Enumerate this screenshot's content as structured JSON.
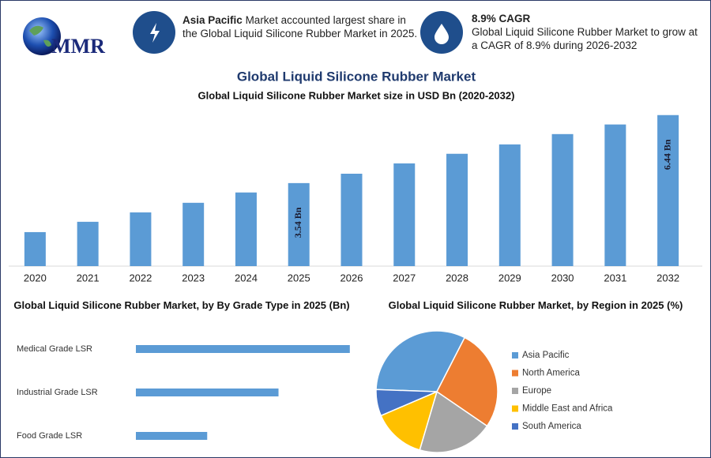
{
  "header": {
    "logo_text": "MMR",
    "highlight_1": {
      "bold": "Asia Pacific",
      "text": "Market accounted largest share in the Global Liquid Silicone Rubber Market in 2025."
    },
    "highlight_2": {
      "title": "8.9% CAGR",
      "text": "Global Liquid Silicone Rubber Market to grow at a CAGR of 8.9% during 2026-2032"
    }
  },
  "title": "Global Liquid Silicone Rubber Market",
  "chart_data": [
    {
      "type": "bar",
      "title": "Global Liquid Silicone Rubber Market size in USD Bn (2020-2032)",
      "categories": [
        "2020",
        "2021",
        "2022",
        "2023",
        "2024",
        "2025",
        "2026",
        "2027",
        "2028",
        "2029",
        "2030",
        "2031",
        "2032"
      ],
      "values": [
        1.45,
        1.89,
        2.29,
        2.7,
        3.14,
        3.54,
        3.94,
        4.38,
        4.79,
        5.19,
        5.63,
        6.04,
        6.44
      ],
      "value_labels": [
        null,
        null,
        null,
        null,
        null,
        "3.54 Bn",
        null,
        null,
        null,
        null,
        null,
        null,
        "6.44 Bn"
      ],
      "color": "#5b9bd5",
      "ylim": [
        0,
        6.6
      ]
    },
    {
      "type": "hbar",
      "title": "Global Liquid Silicone Rubber Market, by By Grade Type in 2025 (Bn)",
      "categories": [
        "Medical Grade LSR",
        "Industrial Grade LSR",
        "Food Grade LSR"
      ],
      "values": [
        1.77,
        1.18,
        0.59
      ],
      "color": "#5b9bd5",
      "xlim": [
        0,
        2
      ]
    },
    {
      "type": "pie",
      "title": "Global Liquid Silicone Rubber Market, by Region in 2025 (%)",
      "categories": [
        "Asia Pacific",
        "North America",
        "Europe",
        "Middle East and Africa",
        "South America"
      ],
      "values": [
        32,
        27,
        20,
        14,
        7
      ],
      "colors": [
        "#5b9bd5",
        "#ed7d31",
        "#a5a5a5",
        "#ffc000",
        "#4472c4"
      ]
    }
  ]
}
